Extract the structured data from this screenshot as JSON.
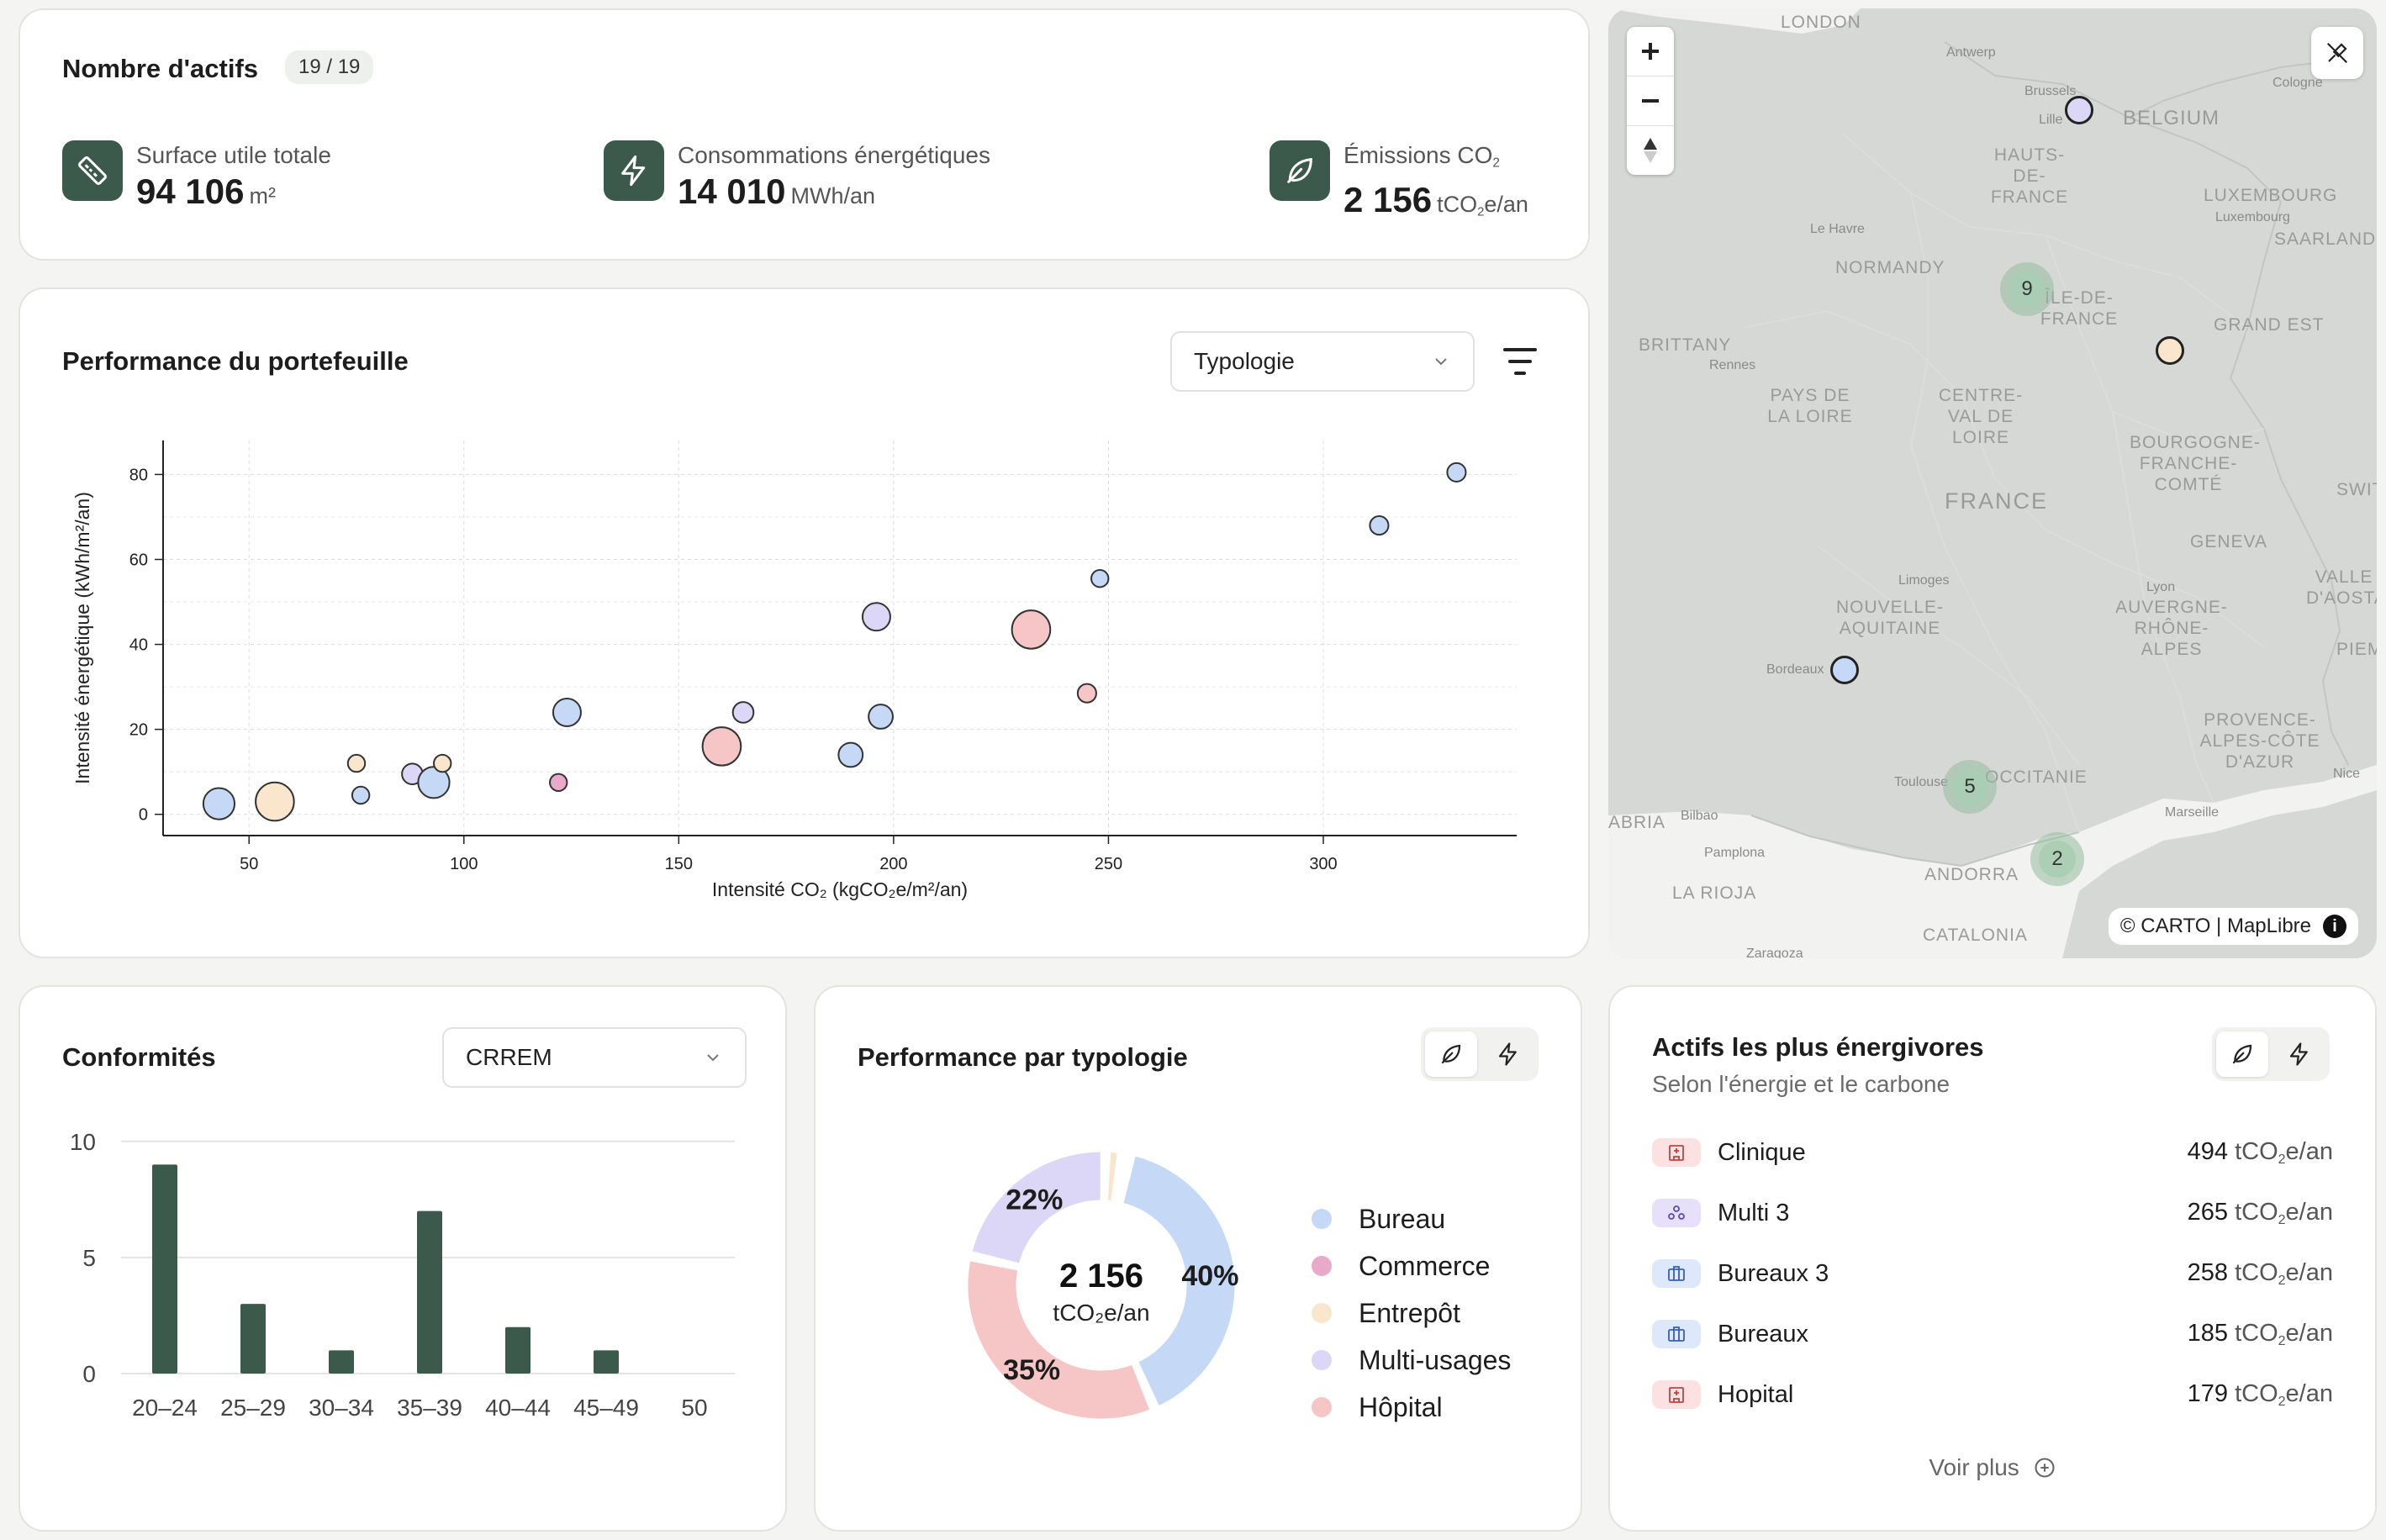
{
  "assets": {
    "title": "Nombre d'actifs",
    "count_badge": "19 / 19",
    "kpis": [
      {
        "label": "Surface utile totale",
        "value": "94 106",
        "unit": "m²",
        "icon": "ruler-icon"
      },
      {
        "label": "Consommations énergétiques",
        "value": "14 010",
        "unit": "MWh/an",
        "icon": "lightning-icon"
      },
      {
        "label_main": "Émissions CO",
        "label_sub": "2",
        "value": "2 156",
        "unit_pre": "tCO",
        "unit_sub": "2",
        "unit_post": "e/an",
        "icon": "leaf-icon"
      }
    ]
  },
  "portfolio": {
    "title": "Performance du portefeuille",
    "dropdown_value": "Typologie"
  },
  "chart_data": [
    {
      "type": "scatter",
      "title": "Performance du portefeuille",
      "xlabel": "Intensité CO₂ (kgCO₂e/m²/an)",
      "ylabel": "Intensité énergétique (kWh/m²/an)",
      "xlim": [
        30,
        345
      ],
      "ylim": [
        -5,
        88
      ],
      "xticks": [
        50,
        100,
        150,
        200,
        250,
        300
      ],
      "yticks": [
        0,
        20,
        40,
        60,
        80
      ],
      "grid": true,
      "points": [
        {
          "x": 43,
          "y": 2.5,
          "size": 3,
          "category": "Bureau"
        },
        {
          "x": 56,
          "y": 3,
          "size": 4,
          "category": "Entrepôt"
        },
        {
          "x": 75,
          "y": 12,
          "size": 1,
          "category": "Entrepôt"
        },
        {
          "x": 76,
          "y": 4.5,
          "size": 1,
          "category": "Bureau"
        },
        {
          "x": 88,
          "y": 9.5,
          "size": 1.5,
          "category": "Multi-usages"
        },
        {
          "x": 93,
          "y": 7.5,
          "size": 3,
          "category": "Bureau"
        },
        {
          "x": 95,
          "y": 12,
          "size": 1,
          "category": "Entrepôt"
        },
        {
          "x": 122,
          "y": 7.5,
          "size": 1,
          "category": "Commerce"
        },
        {
          "x": 124,
          "y": 24,
          "size": 2.5,
          "category": "Bureau"
        },
        {
          "x": 160,
          "y": 16,
          "size": 4,
          "category": "Hôpital"
        },
        {
          "x": 165,
          "y": 24,
          "size": 1.5,
          "category": "Multi-usages"
        },
        {
          "x": 190,
          "y": 14,
          "size": 2,
          "category": "Bureau"
        },
        {
          "x": 196,
          "y": 46.5,
          "size": 2.5,
          "category": "Multi-usages"
        },
        {
          "x": 197,
          "y": 23,
          "size": 2,
          "category": "Bureau"
        },
        {
          "x": 232,
          "y": 43.5,
          "size": 4,
          "category": "Hôpital"
        },
        {
          "x": 245,
          "y": 28.5,
          "size": 1.2,
          "category": "Hôpital"
        },
        {
          "x": 248,
          "y": 55.5,
          "size": 1,
          "category": "Bureau"
        },
        {
          "x": 313,
          "y": 68,
          "size": 1.2,
          "category": "Bureau"
        },
        {
          "x": 331,
          "y": 80.5,
          "size": 1.2,
          "category": "Bureau"
        }
      ]
    },
    {
      "type": "bar",
      "title": "Conformités",
      "categories": [
        "20–24",
        "25–29",
        "30–34",
        "35–39",
        "40–44",
        "45–49",
        "50"
      ],
      "values": [
        9,
        3,
        1,
        7,
        2,
        1,
        0
      ],
      "yticks": [
        0,
        5,
        10
      ],
      "ylim": [
        0,
        10.5
      ]
    },
    {
      "type": "pie",
      "title": "Performance par typologie",
      "center_value": "2 156",
      "center_unit": "tCO₂e/an",
      "slices": [
        {
          "label": "Bureau",
          "value": 40,
          "display": "40%"
        },
        {
          "label": "Hôpital",
          "value": 35,
          "display": "35%"
        },
        {
          "label": "Multi-usages",
          "value": 22,
          "display": "22%"
        },
        {
          "label": "Entrepôt",
          "value": 2,
          "display": ""
        },
        {
          "label": "Commerce",
          "value": 1,
          "display": ""
        }
      ]
    }
  ],
  "compliance": {
    "title": "Conformités",
    "dropdown_value": "CRREM"
  },
  "typology": {
    "title": "Performance par typologie",
    "legend": [
      {
        "label": "Bureau",
        "color": "#c5d8f6"
      },
      {
        "label": "Commerce",
        "color": "#e9a9c8"
      },
      {
        "label": "Entrepôt",
        "color": "#f9e6cc"
      },
      {
        "label": "Multi-usages",
        "color": "#dcd6f7"
      },
      {
        "label": "Hôpital",
        "color": "#f6c6c6"
      }
    ]
  },
  "top_assets": {
    "title": "Actifs les plus énergivores",
    "subtitle": "Selon l'énergie et le carbone",
    "unit_pre": "tCO",
    "unit_sub": "2",
    "unit_post": "e/an",
    "items": [
      {
        "name": "Clinique",
        "value": "494",
        "type": "hospital"
      },
      {
        "name": "Multi 3",
        "value": "265",
        "type": "multi"
      },
      {
        "name": "Bureaux 3",
        "value": "258",
        "type": "office"
      },
      {
        "name": "Bureaux",
        "value": "185",
        "type": "office"
      },
      {
        "name": "Hopital",
        "value": "179",
        "type": "hospital"
      }
    ],
    "see_more": "Voir plus"
  },
  "map": {
    "attribution": "© CARTO | MapLibre",
    "labels": [
      "LONDON",
      "Antwerp",
      "Cologne",
      "Brussels",
      "BELGIUM",
      "Lille",
      "HAUTS-DE-FRANCE",
      "LUXEMBOURG",
      "Luxembourg",
      "SAARLAND",
      "Le Havre",
      "NORMANDY",
      "ÎLE-DE-FRANCE",
      "GRAND EST",
      "BRITTANY",
      "Rennes",
      "PAYS DE LA LOIRE",
      "CENTRE-VAL DE LOIRE",
      "FRANCE",
      "BOURGOGNE-FRANCHE-COMTÉ",
      "GENEVA",
      "Limoges",
      "NOUVELLE-AQUITAINE",
      "Lyon",
      "AUVERGNE-RHÔNE-ALPES",
      "VALLE D'AOSTA",
      "Bordeaux",
      "PIEM",
      "PROVENCE-ALPES-CÔTE D'AZUR",
      "Nice",
      "OCCITANIE",
      "Toulouse",
      "Marseille",
      "Bilbao",
      "ABRIA",
      "Pamplona",
      "LA RIOJA",
      "ANDORRA",
      "CATALONIA",
      "Zaragoza",
      "SWIT"
    ],
    "clusters": [
      "9",
      "5",
      "2"
    ]
  }
}
